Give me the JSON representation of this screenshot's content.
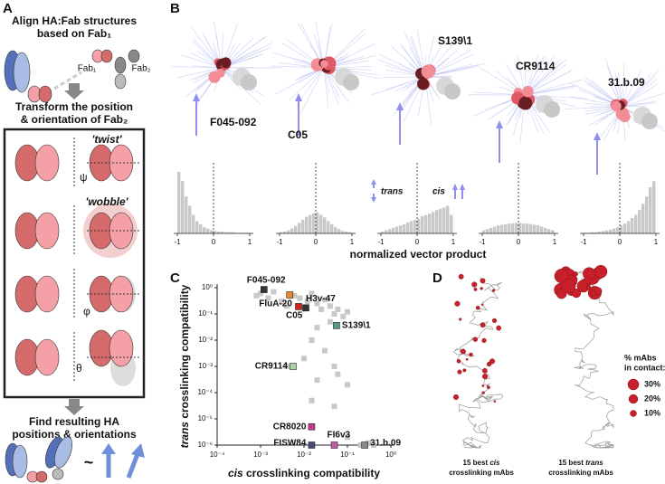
{
  "labels": {
    "a": "A",
    "b": "B",
    "c": "C",
    "d": "D"
  },
  "panel_a": {
    "step1": [
      "Align HA:Fab structures",
      "based on Fab₁"
    ],
    "fab1": "Fab₁",
    "fab2": "Fab₂",
    "step2": [
      "Transform the position",
      "& orientation of Fab₂"
    ],
    "twist": "'twist'",
    "wobble": "'wobble'",
    "psi": "ψ",
    "phi": "φ",
    "theta": "θ",
    "step3": [
      "Find resulting HA",
      "positions & orientations"
    ],
    "tilde": "~"
  },
  "panel_b": {
    "structures": [
      "F045-092",
      "C05",
      "S139\\1",
      "CR9114",
      "31.b.09"
    ],
    "xlabel": "normalized vector product",
    "trans": "trans",
    "cis": "cis"
  },
  "panel_d": {
    "legend_title": [
      "% mAbs",
      "in contact:"
    ],
    "legend_sizes": [
      {
        "value": 30,
        "label": "30%"
      },
      {
        "value": 20,
        "label": "20%"
      },
      {
        "value": 10,
        "label": "10%"
      }
    ],
    "captions": [
      [
        "15 best",
        "cis",
        "crosslinking mAbs"
      ],
      [
        "15 best",
        "trans",
        "crosslinking mAbs"
      ]
    ]
  },
  "chart_data": [
    {
      "type": "histogram",
      "color": "#c8c8c8",
      "bins": [
        -1,
        -0.9,
        -0.8,
        -0.7,
        -0.6,
        -0.5,
        -0.4,
        -0.3,
        -0.2,
        -0.1,
        0,
        0.1,
        0.2,
        0.3,
        0.4,
        0.5,
        0.6,
        0.7,
        0.8,
        0.9,
        1
      ],
      "values": [
        1.0,
        0.85,
        0.6,
        0.45,
        0.3,
        0.2,
        0.15,
        0.1,
        0.08,
        0.05,
        0.04,
        0.03,
        0.03,
        0.02,
        0.02,
        0.02,
        0.01,
        0.01,
        0.01,
        0.01
      ],
      "xlim": [
        -1.1,
        1.1
      ],
      "ylim": [
        0,
        1
      ],
      "xticks": [
        -1,
        0,
        1
      ],
      "vline": 0
    },
    {
      "type": "histogram",
      "color": "#c8c8c8",
      "bins": [
        -1,
        -0.9,
        -0.8,
        -0.7,
        -0.6,
        -0.5,
        -0.4,
        -0.3,
        -0.2,
        -0.1,
        0,
        0.1,
        0.2,
        0.3,
        0.4,
        0.5,
        0.6,
        0.7,
        0.8,
        0.9,
        1
      ],
      "values": [
        0.02,
        0.03,
        0.05,
        0.08,
        0.12,
        0.17,
        0.22,
        0.27,
        0.3,
        0.33,
        0.34,
        0.3,
        0.26,
        0.2,
        0.15,
        0.1,
        0.07,
        0.04,
        0.03,
        0.02
      ],
      "xlim": [
        -1.1,
        1.1
      ],
      "ylim": [
        0,
        1
      ],
      "xticks": [
        -1,
        0,
        1
      ],
      "vline": 0
    },
    {
      "type": "histogram",
      "color": "#c8c8c8",
      "bins": [
        -1,
        -0.9,
        -0.8,
        -0.7,
        -0.6,
        -0.5,
        -0.4,
        -0.3,
        -0.2,
        -0.1,
        0,
        0.1,
        0.2,
        0.3,
        0.4,
        0.5,
        0.6,
        0.7,
        0.8,
        0.9,
        1
      ],
      "values": [
        0.03,
        0.05,
        0.07,
        0.09,
        0.11,
        0.13,
        0.15,
        0.18,
        0.2,
        0.22,
        0.24,
        0.28,
        0.3,
        0.32,
        0.35,
        0.38,
        0.4,
        0.42,
        0.45,
        0.3
      ],
      "xlim": [
        -1.1,
        1.1
      ],
      "ylim": [
        0,
        1
      ],
      "xticks": [
        -1,
        0,
        1
      ],
      "vline": 0
    },
    {
      "type": "histogram",
      "color": "#c8c8c8",
      "bins": [
        -1,
        -0.9,
        -0.8,
        -0.7,
        -0.6,
        -0.5,
        -0.4,
        -0.3,
        -0.2,
        -0.1,
        0,
        0.1,
        0.2,
        0.3,
        0.4,
        0.5,
        0.6,
        0.7,
        0.8,
        0.9,
        1
      ],
      "values": [
        0.05,
        0.07,
        0.09,
        0.11,
        0.13,
        0.14,
        0.15,
        0.16,
        0.16,
        0.17,
        0.17,
        0.16,
        0.16,
        0.15,
        0.14,
        0.13,
        0.11,
        0.09,
        0.07,
        0.05
      ],
      "xlim": [
        -1.1,
        1.1
      ],
      "ylim": [
        0,
        1
      ],
      "xticks": [
        -1,
        0,
        1
      ],
      "vline": 0
    },
    {
      "type": "histogram",
      "color": "#c8c8c8",
      "bins": [
        -1,
        -0.9,
        -0.8,
        -0.7,
        -0.6,
        -0.5,
        -0.4,
        -0.3,
        -0.2,
        -0.1,
        0,
        0.1,
        0.2,
        0.3,
        0.4,
        0.5,
        0.6,
        0.7,
        0.8,
        0.9,
        1
      ],
      "values": [
        0.01,
        0.01,
        0.02,
        0.02,
        0.03,
        0.04,
        0.05,
        0.06,
        0.08,
        0.1,
        0.13,
        0.16,
        0.2,
        0.25,
        0.3,
        0.38,
        0.48,
        0.6,
        0.75,
        0.85
      ],
      "xlim": [
        -1.1,
        1.1
      ],
      "ylim": [
        0,
        1
      ],
      "xticks": [
        -1,
        0,
        1
      ],
      "vline": 0
    },
    {
      "type": "scatter",
      "log": true,
      "xlabel": [
        "cis",
        "crosslinking compatibility"
      ],
      "ylabel": [
        "trans",
        "crosslinking compatibility"
      ],
      "xlim": [
        0.0001,
        1
      ],
      "ylim": [
        1e-06,
        1
      ],
      "xticks": [
        {
          "value": 0.0001,
          "label": "10⁻⁴"
        },
        {
          "value": 0.001,
          "label": "10⁻³"
        },
        {
          "value": 0.01,
          "label": "10⁻²"
        },
        {
          "value": 0.1,
          "label": "10⁻¹"
        },
        {
          "value": 1,
          "label": "10⁰"
        }
      ],
      "yticks": [
        {
          "value": 1e-06,
          "label": "10⁻⁶"
        },
        {
          "value": 1e-05,
          "label": "10⁻⁵"
        },
        {
          "value": 0.0001,
          "label": "10⁻⁴"
        },
        {
          "value": 0.001,
          "label": "10⁻³"
        },
        {
          "value": 0.01,
          "label": "10⁻²"
        },
        {
          "value": 0.1,
          "label": "10⁻¹"
        },
        {
          "value": 1,
          "label": "10⁰"
        }
      ],
      "points": {
        "color": "#c8c8c8",
        "x": [
          0.0008,
          0.001,
          0.0015,
          0.002,
          0.003,
          0.004,
          0.006,
          0.008,
          0.012,
          0.015,
          0.02,
          0.025,
          0.03,
          0.04,
          0.05,
          0.06,
          0.08,
          0.1,
          0.04,
          0.02,
          0.015,
          0.03,
          0.01,
          0.05,
          0.004,
          0.02,
          0.06,
          0.1,
          0.015,
          0.05,
          0.2,
          0.3,
          0.25,
          0.1,
          0.4
        ],
        "y": [
          0.5,
          0.6,
          0.4,
          0.7,
          0.3,
          0.2,
          0.5,
          0.4,
          0.3,
          0.6,
          0.25,
          0.15,
          0.35,
          0.2,
          0.1,
          0.15,
          0.08,
          0.12,
          0.05,
          0.03,
          0.01,
          0.004,
          0.002,
          0.001,
          0.001,
          0.0003,
          0.0005,
          0.0002,
          5e-05,
          3e-05,
          1e-06,
          1.2e-06,
          1e-06,
          2e-06,
          1e-06
        ]
      },
      "labeled": [
        {
          "name": "F045-092",
          "color": "#333333",
          "x": 0.0012,
          "y": 0.85
        },
        {
          "name": "FluA-20",
          "color": "#e8892b",
          "x": 0.0047,
          "y": 0.53
        },
        {
          "name": "C05",
          "color": "#d42020",
          "x": 0.0075,
          "y": 0.19
        },
        {
          "name": "H3v-47",
          "color": "#333333",
          "x": 0.011,
          "y": 0.17
        },
        {
          "name": "S139\\1",
          "color": "#5a9a8a",
          "x": 0.056,
          "y": 0.036
        },
        {
          "name": "CR9114",
          "color": "#a6d6a0",
          "x": 0.0056,
          "y": 0.001
        },
        {
          "name": "CR8020",
          "color": "#c43c8c",
          "x": 0.015,
          "y": 5e-06
        },
        {
          "name": "FISW84",
          "color": "#4a4a7a",
          "x": 0.015,
          "y": 1e-06
        },
        {
          "name": "FI6v3",
          "color": "#c45ca0",
          "x": 0.05,
          "y": 1e-06
        },
        {
          "name": "31.b.09",
          "color": "#8a8a8a",
          "x": 0.25,
          "y": 1e-06
        }
      ]
    }
  ]
}
